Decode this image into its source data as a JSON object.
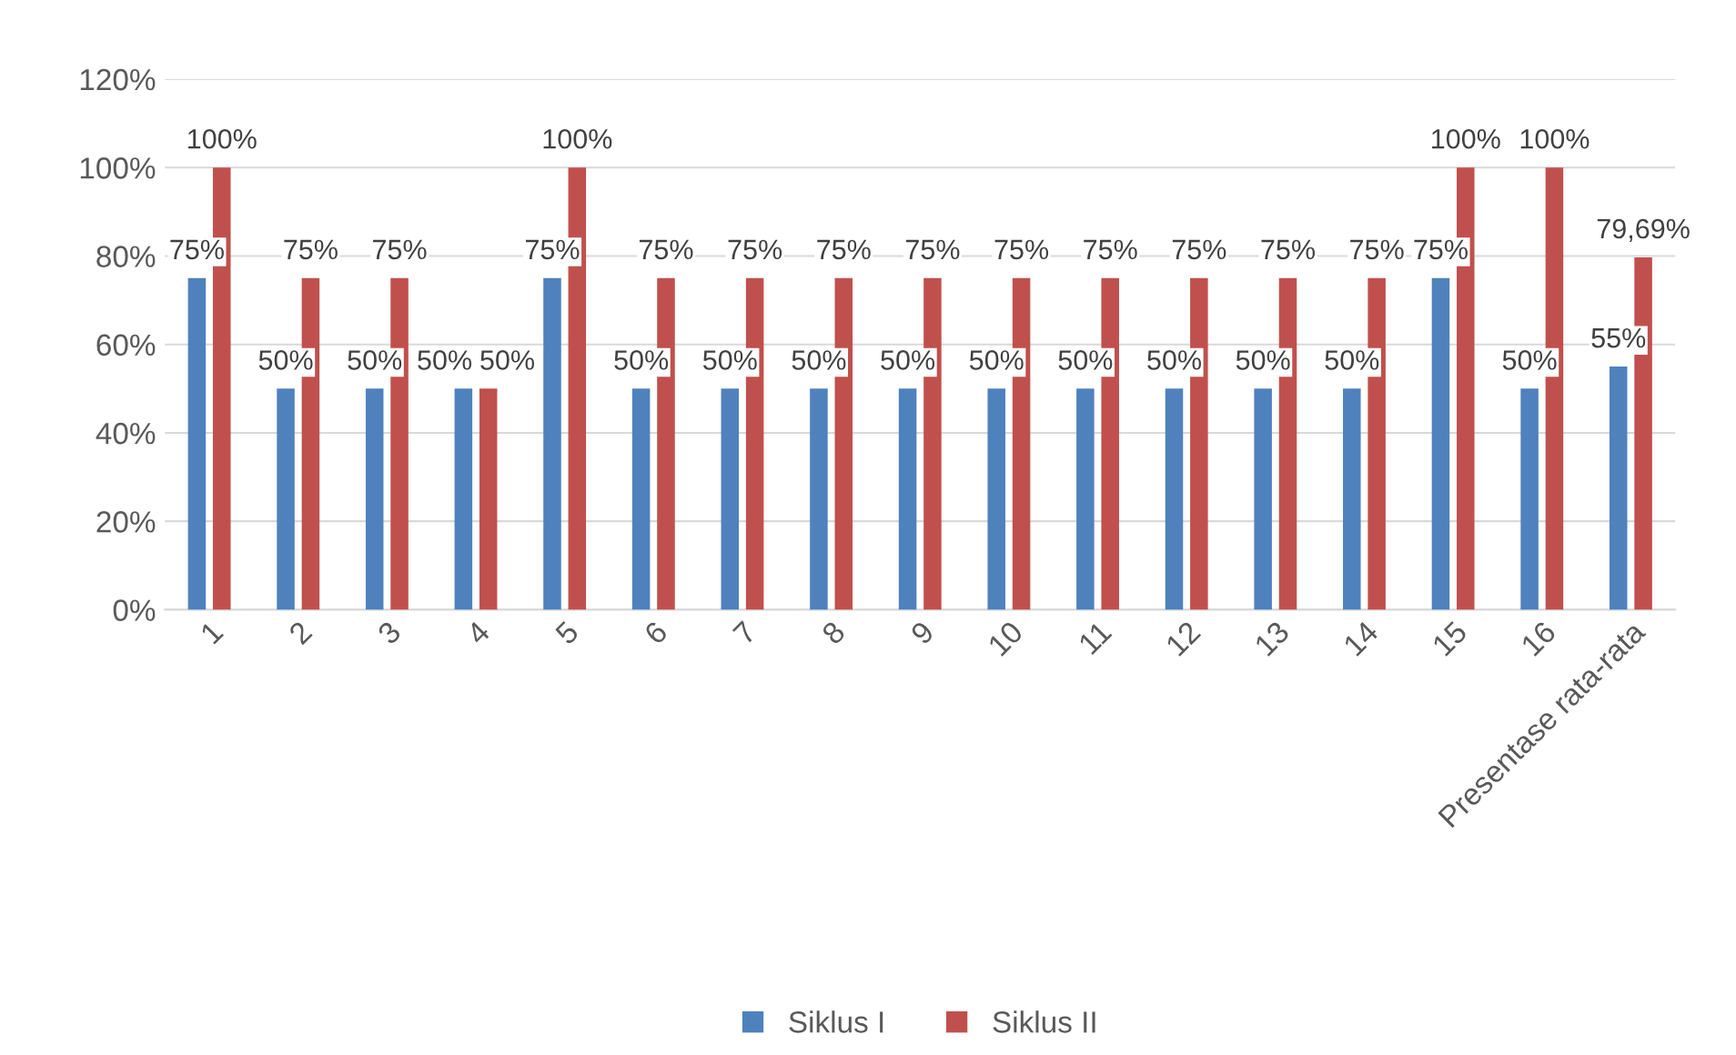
{
  "chart_data": {
    "type": "bar",
    "categories": [
      "1",
      "2",
      "3",
      "4",
      "5",
      "6",
      "7",
      "8",
      "9",
      "10",
      "11",
      "12",
      "13",
      "14",
      "15",
      "16",
      "Presentase rata-rata"
    ],
    "series": [
      {
        "name": "Siklus I",
        "color": "#4f81bd",
        "values": [
          75,
          50,
          50,
          50,
          75,
          50,
          50,
          50,
          50,
          50,
          50,
          50,
          50,
          50,
          75,
          50,
          55
        ],
        "value_labels": [
          "75%",
          "50%",
          "50%",
          "50%",
          "75%",
          "50%",
          "50%",
          "50%",
          "50%",
          "50%",
          "50%",
          "50%",
          "50%",
          "50%",
          "75%",
          "50%",
          "55%"
        ]
      },
      {
        "name": "Siklus II",
        "color": "#c0504d",
        "values": [
          100,
          75,
          75,
          50,
          100,
          75,
          75,
          75,
          75,
          75,
          75,
          75,
          75,
          75,
          100,
          100,
          79.69
        ],
        "value_labels": [
          "100%",
          "75%",
          "75%",
          "50%",
          "100%",
          "75%",
          "75%",
          "75%",
          "75%",
          "75%",
          "75%",
          "75%",
          "75%",
          "75%",
          "100%",
          "100%",
          "79,69%"
        ]
      }
    ],
    "ylim": [
      0,
      120
    ],
    "yticks": [
      {
        "value": 0,
        "label": "0%"
      },
      {
        "value": 20,
        "label": "20%"
      },
      {
        "value": 40,
        "label": "40%"
      },
      {
        "value": 60,
        "label": "60%"
      },
      {
        "value": 80,
        "label": "80%"
      },
      {
        "value": 100,
        "label": "100%"
      },
      {
        "value": 120,
        "label": "120%"
      }
    ],
    "grid": "y",
    "legend": "bottom"
  }
}
